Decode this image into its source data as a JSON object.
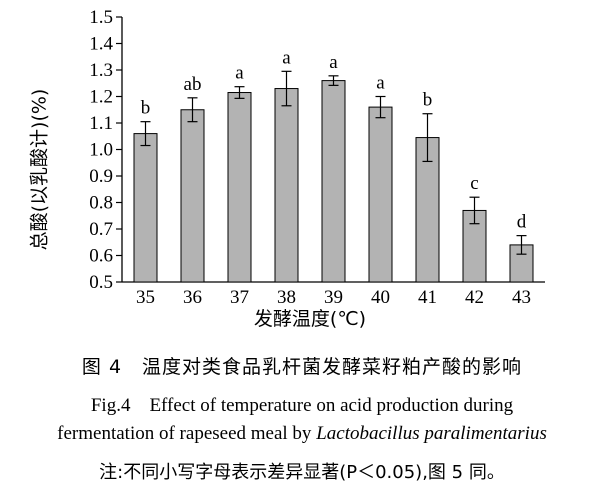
{
  "chart_data": {
    "type": "bar",
    "categories": [
      "35",
      "36",
      "37",
      "38",
      "39",
      "40",
      "41",
      "42",
      "43"
    ],
    "values": [
      1.06,
      1.15,
      1.215,
      1.23,
      1.26,
      1.16,
      1.045,
      0.77,
      0.64
    ],
    "errors": [
      0.045,
      0.045,
      0.022,
      0.065,
      0.018,
      0.04,
      0.09,
      0.05,
      0.035
    ],
    "significance_labels": [
      "b",
      "ab",
      "a",
      "a",
      "a",
      "a",
      "b",
      "c",
      "d"
    ],
    "ylim": [
      0.5,
      1.5
    ],
    "yticks": [
      "0.5",
      "0.6",
      "0.7",
      "0.8",
      "0.9",
      "1.0",
      "1.1",
      "1.2",
      "1.3",
      "1.4",
      "1.5"
    ],
    "ylabel": "总酸(以乳酸计)(%)",
    "xlabel": "发酵温度(℃)",
    "bar_color": "#b3b3b3"
  },
  "caption": {
    "zh": "图 4　温度对类食品乳杆菌发酵菜籽粕产酸的影响",
    "en_line1": "Fig.4　Effect of temperature on acid production during",
    "en_line2_prefix": "fermentation of rapeseed meal by ",
    "en_line2_species": "Lactobacillus paralimentarius",
    "note": "注:不同小写字母表示差异显著(P＜0.05),图 5 同。"
  }
}
